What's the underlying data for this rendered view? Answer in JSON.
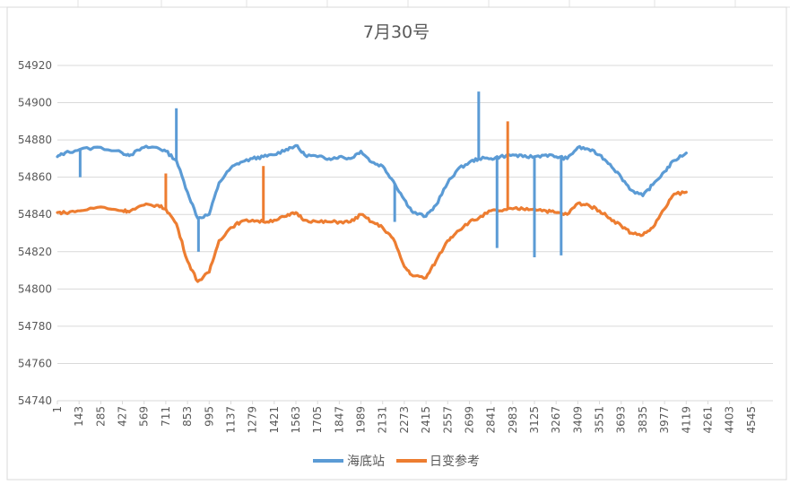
{
  "chart_data": {
    "type": "line",
    "title": "7月30号",
    "xlabel": "",
    "ylabel": "",
    "ylim": [
      54740,
      54920
    ],
    "yticks": [
      "54740",
      "54760",
      "54780",
      "54800",
      "54820",
      "54840",
      "54860",
      "54880",
      "54900",
      "54920"
    ],
    "xlim": [
      1,
      4687
    ],
    "xticks": [
      "1",
      "143",
      "285",
      "427",
      "569",
      "711",
      "853",
      "995",
      "1137",
      "1279",
      "1421",
      "1563",
      "1705",
      "1847",
      "1989",
      "2131",
      "2273",
      "2415",
      "2557",
      "2699",
      "2841",
      "2983",
      "3125",
      "3267",
      "3409",
      "3551",
      "3693",
      "3835",
      "3977",
      "4119",
      "4261",
      "4403",
      "4545"
    ],
    "grid": true,
    "legend_position": "bottom",
    "colors": {
      "series_0": "#5B9BD5",
      "series_1": "#ED7D31",
      "grid": "#D9D9D9",
      "title": "#595959",
      "tick": "#595959"
    },
    "series": [
      {
        "name": "海底站",
        "x": [
          1,
          50,
          150,
          285,
          427,
          480,
          569,
          650,
          711,
          780,
          853,
          920,
          995,
          1060,
          1137,
          1200,
          1279,
          1350,
          1421,
          1500,
          1563,
          1620,
          1705,
          1780,
          1847,
          1920,
          1989,
          2060,
          2131,
          2200,
          2273,
          2330,
          2415,
          2480,
          2557,
          2620,
          2699,
          2760,
          2841,
          2900,
          2983,
          3050,
          3125,
          3200,
          3267,
          3340,
          3409,
          3480,
          3551,
          3620,
          3693,
          3760,
          3835,
          3900,
          3977,
          4040,
          4119
        ],
        "y": [
          54871,
          54873,
          54875,
          54876,
          54873,
          54872,
          54876,
          54876,
          54874,
          54869,
          54852,
          54838,
          54840,
          54857,
          54865,
          54868,
          54870,
          54871,
          54872,
          54875,
          54877,
          54872,
          54871,
          54870,
          54871,
          54870,
          54874,
          54868,
          54866,
          54858,
          54848,
          54841,
          54839,
          54845,
          54857,
          54864,
          54868,
          54870,
          54870,
          54871,
          54872,
          54871,
          54871,
          54872,
          54871,
          54870,
          54876,
          54875,
          54872,
          54867,
          54860,
          54853,
          54850,
          54856,
          54863,
          54869,
          54873
        ]
      },
      {
        "name": "日变参考",
        "x": [
          1,
          50,
          150,
          285,
          427,
          480,
          569,
          650,
          711,
          780,
          853,
          920,
          995,
          1060,
          1137,
          1200,
          1279,
          1350,
          1421,
          1500,
          1563,
          1620,
          1705,
          1780,
          1847,
          1920,
          1989,
          2060,
          2131,
          2200,
          2273,
          2330,
          2415,
          2480,
          2557,
          2620,
          2699,
          2760,
          2841,
          2900,
          2983,
          3050,
          3125,
          3200,
          3267,
          3340,
          3409,
          3480,
          3551,
          3620,
          3693,
          3760,
          3835,
          3900,
          3977,
          4040,
          4119
        ],
        "y": [
          54841,
          54841,
          54842,
          54844,
          54842,
          54842,
          54845,
          54845,
          54843,
          54835,
          54815,
          54804,
          54809,
          54826,
          54833,
          54836,
          54837,
          54836,
          54837,
          54839,
          54841,
          54837,
          54836,
          54836,
          54836,
          54836,
          54840,
          54836,
          54833,
          54827,
          54812,
          54807,
          54806,
          54815,
          54826,
          54831,
          54836,
          54838,
          54842,
          54842,
          54843,
          54843,
          54843,
          54842,
          54841,
          54840,
          54846,
          54845,
          54842,
          54838,
          54834,
          54830,
          54829,
          54833,
          54843,
          54851,
          54852
        ]
      }
    ],
    "spikes": [
      {
        "series": 0,
        "x": 780,
        "to": 54897
      },
      {
        "series": 0,
        "x": 925,
        "to": 54820
      },
      {
        "series": 0,
        "x": 2760,
        "to": 54906
      },
      {
        "series": 0,
        "x": 2880,
        "to": 54822
      },
      {
        "series": 0,
        "x": 3125,
        "to": 54817
      },
      {
        "series": 0,
        "x": 3300,
        "to": 54818
      },
      {
        "series": 0,
        "x": 2210,
        "to": 54836
      },
      {
        "series": 0,
        "x": 150,
        "to": 54860
      },
      {
        "series": 1,
        "x": 2950,
        "to": 54890
      },
      {
        "series": 1,
        "x": 1350,
        "to": 54866
      },
      {
        "series": 1,
        "x": 711,
        "to": 54862
      }
    ]
  }
}
